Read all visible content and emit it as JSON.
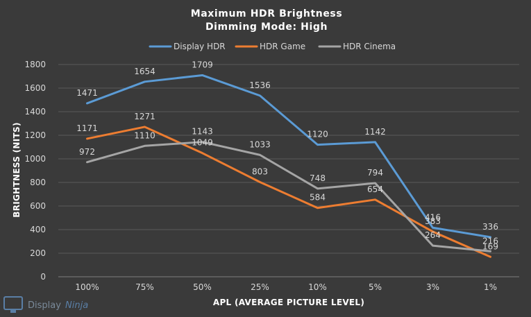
{
  "colors": {
    "background": "#3a3a3a",
    "display_hdr": "#5b9bd5",
    "hdr_game": "#ed7d31",
    "hdr_cinema": "#a5a5a5"
  },
  "watermark": {
    "brand_a": "Display",
    "brand_b": "Ninja",
    "icon": "monitor-logo-icon"
  },
  "chart_data": {
    "type": "line",
    "title": [
      "Maximum HDR Brightness",
      "Dimming Mode: High"
    ],
    "xlabel": "APL (AVERAGE PICTURE LEVEL)",
    "ylabel": "BRIGHTNESS (NITS)",
    "ylim": [
      0,
      1800
    ],
    "yticks": [
      0,
      200,
      400,
      600,
      800,
      1000,
      1200,
      1400,
      1600,
      1800
    ],
    "grid": true,
    "legend": "top",
    "categories": [
      "100%",
      "75%",
      "50%",
      "25%",
      "10%",
      "5%",
      "3%",
      "1%"
    ],
    "series": [
      {
        "name": "Display HDR",
        "color": "#5b9bd5",
        "values": [
          1471,
          1654,
          1709,
          1536,
          1120,
          1142,
          416,
          336
        ]
      },
      {
        "name": "HDR Game",
        "color": "#ed7d31",
        "values": [
          1171,
          1271,
          1049,
          803,
          584,
          654,
          383,
          169
        ]
      },
      {
        "name": "HDR Cinema",
        "color": "#a5a5a5",
        "values": [
          972,
          1110,
          1143,
          1033,
          748,
          794,
          264,
          216
        ]
      }
    ]
  }
}
